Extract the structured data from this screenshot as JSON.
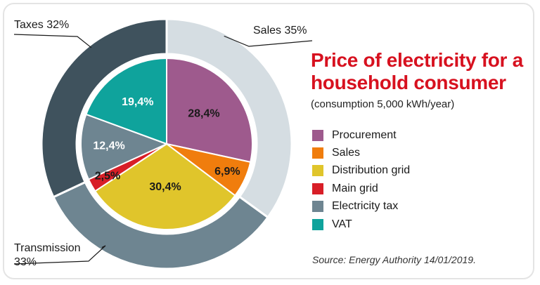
{
  "title": "Price of electricity for a household consumer",
  "subtitle": "(consumption 5,000 kWh/year)",
  "source": "Source: Energy Authority 14/01/2019.",
  "chart_data": {
    "type": "pie",
    "title": "Price of electricity for a household consumer",
    "subtitle": "(consumption 5,000 kWh/year)",
    "inner": [
      {
        "name": "Procurement",
        "value": 28.4,
        "label": "28,4%",
        "color": "#9e5a8d",
        "text_color": "#1a1a1a"
      },
      {
        "name": "Sales",
        "value": 6.9,
        "label": "6,9%",
        "color": "#f07d0d",
        "text_color": "#1a1a1a"
      },
      {
        "name": "Distribution grid",
        "value": 30.4,
        "label": "30,4%",
        "color": "#e0c52b",
        "text_color": "#1a1a1a"
      },
      {
        "name": "Main grid",
        "value": 2.5,
        "label": "2,5%",
        "color": "#d81e27",
        "text_color": "#1a1a1a"
      },
      {
        "name": "Electricity tax",
        "value": 12.4,
        "label": "12,4%",
        "color": "#6e8591",
        "text_color": "#ffffff"
      },
      {
        "name": "VAT",
        "value": 19.4,
        "label": "19,4%",
        "color": "#0fa39c",
        "text_color": "#ffffff"
      }
    ],
    "outer": [
      {
        "name": "Sales",
        "value": 35,
        "label": "Sales 35%",
        "color": "#d5dde2"
      },
      {
        "name": "Transmission",
        "value": 33,
        "label": "Transmission 33%",
        "color": "#6e8591"
      },
      {
        "name": "Taxes",
        "value": 32,
        "label": "Taxes 32%",
        "color": "#3f525d"
      }
    ],
    "legend": [
      {
        "label": "Procurement",
        "color": "#9e5a8d"
      },
      {
        "label": "Sales",
        "color": "#f07d0d"
      },
      {
        "label": "Distribution grid",
        "color": "#e0c52b"
      },
      {
        "label": "Main grid",
        "color": "#d81e27"
      },
      {
        "label": "Electricity tax",
        "color": "#6e8591"
      },
      {
        "label": "VAT",
        "color": "#0fa39c"
      }
    ],
    "source": "Source: Energy Authority 14/01/2019."
  }
}
